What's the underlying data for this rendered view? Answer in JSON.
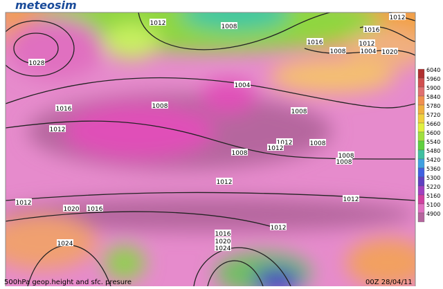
{
  "logo": "meteosim",
  "caption": "500hPa geop.height and sfc. presure",
  "timestamp": "00Z 28/04/11",
  "isobar_labels": [
    "1012",
    "1008",
    "1012",
    "1016",
    "1016",
    "1008",
    "1012",
    "1004",
    "1020",
    "1028",
    "1004",
    "1016",
    "1008",
    "1008",
    "1012",
    "1012",
    "1012",
    "1008",
    "1008",
    "1008",
    "1008",
    "1012",
    "1012",
    "1012",
    "1020",
    "1016",
    "1012",
    "1016",
    "1020",
    "1024",
    "1024"
  ],
  "colorbar_labels": [
    "6040",
    "5960",
    "5900",
    "5840",
    "5780",
    "5720",
    "5660",
    "5600",
    "5540",
    "5480",
    "5420",
    "5360",
    "5300",
    "5220",
    "5160",
    "5100",
    "4900"
  ]
}
